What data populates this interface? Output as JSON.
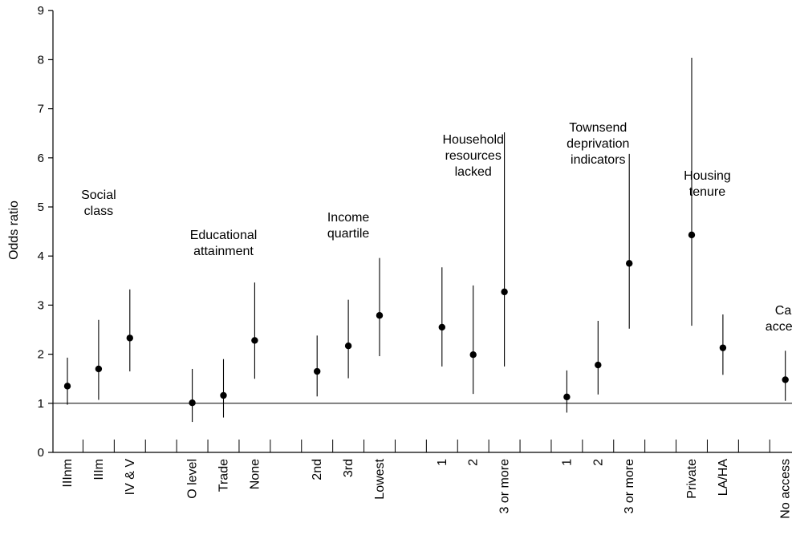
{
  "chart_data": {
    "type": "scatter",
    "subtype": "odds-ratio-with-confidence-intervals",
    "ylabel": "Odds ratio",
    "ylim": [
      0,
      9
    ],
    "yticks": [
      0,
      1,
      2,
      3,
      4,
      5,
      6,
      7,
      8,
      9
    ],
    "reference_line": 1,
    "grid": false,
    "groups": [
      {
        "label": [
          "Social",
          "class"
        ],
        "categories": [
          {
            "label": "IIInm",
            "or": 1.35,
            "lo": 0.97,
            "hi": 1.93
          },
          {
            "label": "IIIm",
            "or": 1.7,
            "lo": 1.07,
            "hi": 2.7
          },
          {
            "label": "IV & V",
            "or": 2.33,
            "lo": 1.65,
            "hi": 3.32
          }
        ]
      },
      {
        "label": [
          "Educational",
          "attainment"
        ],
        "categories": [
          {
            "label": "O level",
            "or": 1.01,
            "lo": 0.62,
            "hi": 1.7
          },
          {
            "label": "Trade",
            "or": 1.16,
            "lo": 0.71,
            "hi": 1.9
          },
          {
            "label": "None",
            "or": 2.28,
            "lo": 1.5,
            "hi": 3.46
          }
        ]
      },
      {
        "label": [
          "Income",
          "quartile"
        ],
        "categories": [
          {
            "label": "2nd",
            "or": 1.65,
            "lo": 1.14,
            "hi": 2.38
          },
          {
            "label": "3rd",
            "or": 2.17,
            "lo": 1.51,
            "hi": 3.11
          },
          {
            "label": "Lowest",
            "or": 2.79,
            "lo": 1.96,
            "hi": 3.96
          }
        ]
      },
      {
        "label": [
          "Household",
          "resources",
          "lacked"
        ],
        "categories": [
          {
            "label": "1",
            "or": 2.55,
            "lo": 1.75,
            "hi": 3.77
          },
          {
            "label": "2",
            "or": 1.99,
            "lo": 1.19,
            "hi": 3.4
          },
          {
            "label": "3 or more",
            "or": 3.27,
            "lo": 1.75,
            "hi": 6.52
          }
        ]
      },
      {
        "label": [
          "Townsend",
          "deprivation",
          "indicators"
        ],
        "categories": [
          {
            "label": "1",
            "or": 1.13,
            "lo": 0.81,
            "hi": 1.67
          },
          {
            "label": "2",
            "or": 1.78,
            "lo": 1.18,
            "hi": 2.68
          },
          {
            "label": "3 or more",
            "or": 3.85,
            "lo": 2.52,
            "hi": 6.08
          }
        ]
      },
      {
        "label": [
          "Housing",
          "tenure"
        ],
        "categories": [
          {
            "label": "Private",
            "or": 4.43,
            "lo": 2.58,
            "hi": 8.04
          },
          {
            "label": "LA/HA",
            "or": 2.13,
            "lo": 1.58,
            "hi": 2.81
          }
        ]
      },
      {
        "label": [
          "Car",
          "access"
        ],
        "categories": [
          {
            "label": "No access",
            "or": 1.48,
            "lo": 1.05,
            "hi": 2.07
          }
        ]
      }
    ]
  }
}
